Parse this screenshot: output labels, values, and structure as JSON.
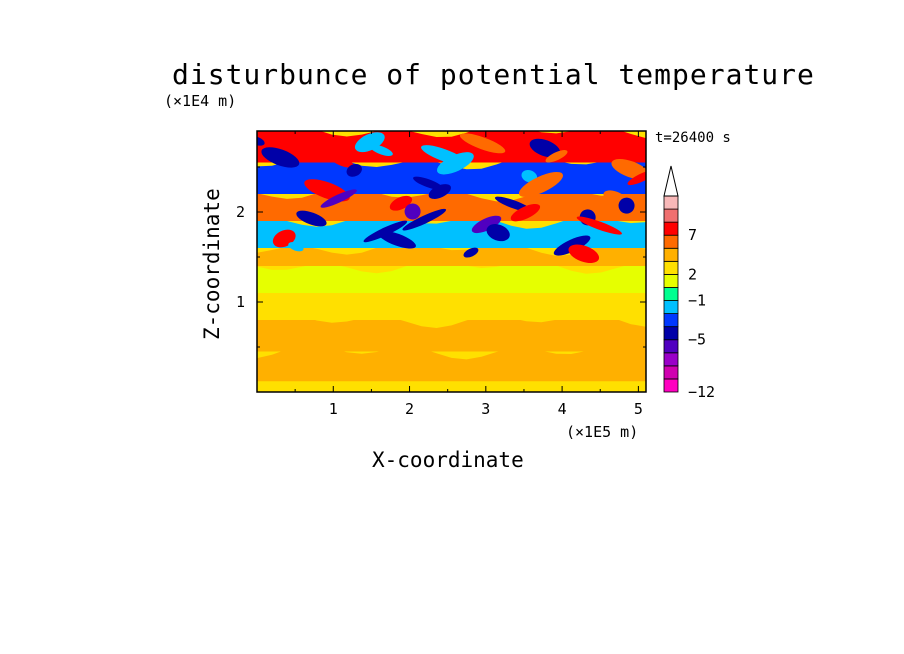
{
  "chart_data": {
    "type": "heatmap",
    "title": "disturbunce of potential temperature",
    "xlabel": "X-coordinate",
    "ylabel": "Z-coordinate",
    "x_unit": "(×1E5 m)",
    "y_unit": "(×1E4 m)",
    "annotation": "t=26400 s",
    "xlim": [
      0,
      5.1
    ],
    "ylim": [
      0,
      2.9
    ],
    "x_ticks": [
      1,
      2,
      3,
      4,
      5
    ],
    "y_ticks": [
      1,
      2
    ],
    "colorbar": {
      "extend": "max",
      "labels": [
        {
          "value": 7,
          "text": "7"
        },
        {
          "value": 2,
          "text": "2"
        },
        {
          "value": -1,
          "text": "−1"
        },
        {
          "value": -5,
          "text": "−5"
        },
        {
          "value": -12,
          "text": "−12"
        }
      ],
      "colors": [
        "#ff00c0",
        "#d000b0",
        "#9a00c8",
        "#5000c0",
        "#0000a8",
        "#0038ff",
        "#00c0ff",
        "#00ff90",
        "#e6ff00",
        "#ffe000",
        "#ffb000",
        "#ff6a00",
        "#ff0000",
        "#f07070",
        "#f8b8b8"
      ]
    },
    "bands": [
      {
        "z": [
          0.0,
          0.12
        ],
        "level": 9
      },
      {
        "z": [
          0.12,
          0.45
        ],
        "level": 10
      },
      {
        "z": [
          0.45,
          0.8
        ],
        "level": 10
      },
      {
        "z": [
          0.8,
          1.1
        ],
        "level": 9
      },
      {
        "z": [
          1.1,
          1.4
        ],
        "level": 8
      },
      {
        "z": [
          1.4,
          1.6
        ],
        "level": 10
      },
      {
        "z": [
          1.6,
          1.9
        ],
        "level": 6
      },
      {
        "z": [
          1.9,
          2.2
        ],
        "level": 11
      },
      {
        "z": [
          2.2,
          2.55
        ],
        "level": 5
      },
      {
        "z": [
          2.55,
          2.9
        ],
        "level": 12
      }
    ]
  }
}
